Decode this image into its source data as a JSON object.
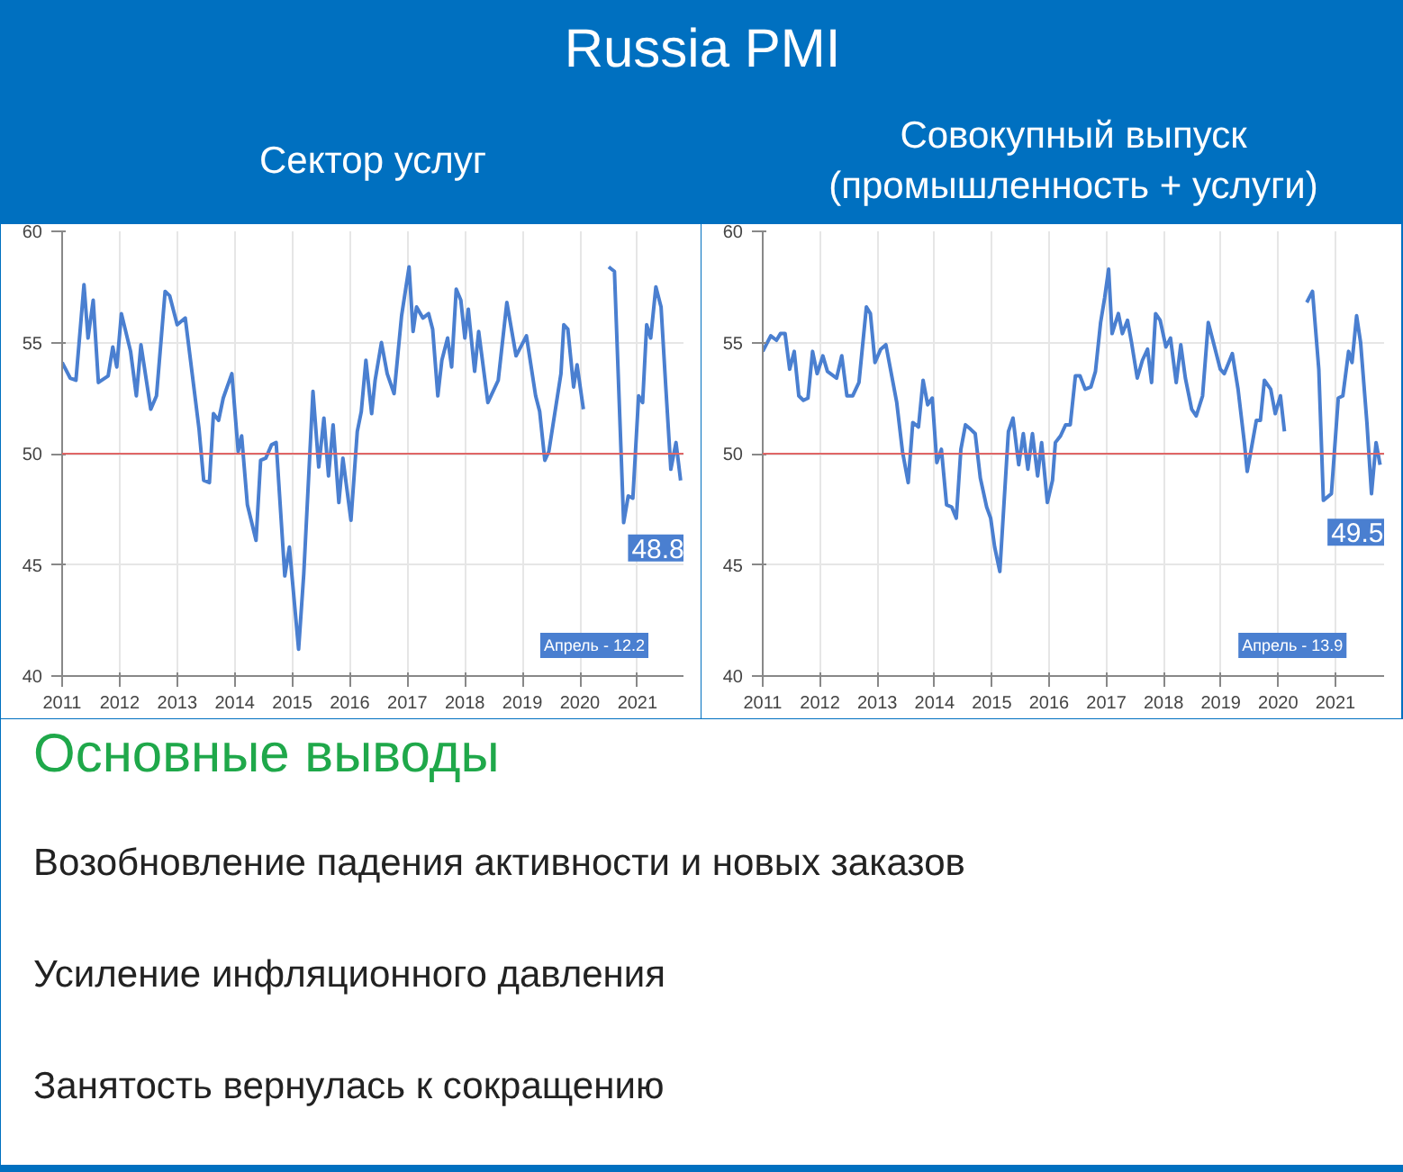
{
  "chart_data": [
    {
      "type": "other",
      "title": "Russia PMI"
    },
    {
      "type": "line",
      "title": "Сектор услуг",
      "xlim": [
        2011,
        2021.8
      ],
      "ylim": [
        40,
        60
      ],
      "xticks": [
        2011,
        2012,
        2013,
        2014,
        2015,
        2016,
        2017,
        2018,
        2019,
        2020,
        2021
      ],
      "yticks": [
        40,
        45,
        50,
        55,
        60
      ],
      "grid": true,
      "marker": "none",
      "line_style": "solid",
      "series": [
        {
          "color": "#4a7fd0",
          "x": [
            2011.0,
            2011.14,
            2011.24,
            2011.38,
            2011.45,
            2011.54,
            2011.63,
            2011.8,
            2011.88,
            2011.95,
            2012.03,
            2012.19,
            2012.29,
            2012.37,
            2012.54,
            2012.64,
            2012.79,
            2012.87,
            2013.0,
            2013.14,
            2013.38,
            2013.46,
            2013.56,
            2013.63,
            2013.72,
            2013.8,
            2013.95,
            2014.06,
            2014.12,
            2014.22,
            2014.37,
            2014.45,
            2014.54,
            2014.64,
            2014.72,
            2014.87,
            2014.95,
            2015.11,
            2015.2,
            2015.36,
            2015.46,
            2015.55,
            2015.63,
            2015.71,
            2015.81,
            2015.88,
            2015.96,
            2016.02,
            2016.13,
            2016.2,
            2016.28,
            2016.38,
            2016.44,
            2016.55,
            2016.65,
            2016.77,
            2016.9,
            2017.03,
            2017.1,
            2017.16,
            2017.27,
            2017.37,
            2017.44,
            2017.53,
            2017.6,
            2017.7,
            2017.77,
            2017.85,
            2017.93,
            2018.0,
            2018.06,
            2018.17,
            2018.24,
            2018.4,
            2018.58,
            2018.73,
            2018.89,
            2019.07,
            2019.23,
            2019.3,
            2019.39,
            2019.46,
            2019.67,
            2019.72,
            2019.79,
            2019.89,
            2019.95,
            2020.06,
            2020.25,
            2020.5,
            2020.6,
            2020.76,
            2020.84,
            2020.92,
            2021.02,
            2021.09,
            2021.16,
            2021.23,
            2021.32,
            2021.41,
            2021.49,
            2021.58,
            2021.67,
            2021.75
          ],
          "values": [
            54.1,
            53.4,
            53.3,
            57.6,
            55.2,
            56.9,
            53.2,
            53.5,
            54.8,
            53.9,
            56.3,
            54.6,
            52.6,
            54.9,
            52.0,
            52.6,
            57.3,
            57.1,
            55.8,
            56.1,
            51.1,
            48.8,
            48.7,
            51.8,
            51.5,
            52.5,
            53.6,
            50.1,
            50.8,
            47.7,
            46.1,
            49.7,
            49.8,
            50.4,
            50.5,
            44.5,
            45.8,
            41.2,
            44.6,
            52.8,
            49.4,
            51.6,
            49.0,
            51.3,
            47.8,
            49.8,
            48.2,
            47.0,
            51.0,
            51.9,
            54.2,
            51.8,
            53.3,
            55.0,
            53.6,
            52.7,
            56.2,
            58.4,
            55.5,
            56.6,
            56.1,
            56.3,
            55.6,
            52.6,
            54.2,
            55.2,
            53.9,
            57.4,
            56.9,
            55.2,
            56.5,
            53.7,
            55.5,
            52.3,
            53.3,
            56.8,
            54.4,
            55.3,
            52.6,
            51.9,
            49.7,
            50.1,
            53.6,
            55.8,
            55.6,
            53.0,
            54.0,
            52.0,
            null,
            58.4,
            58.2,
            46.9,
            48.1,
            48.0,
            52.6,
            52.3,
            55.8,
            55.2,
            57.5,
            56.6,
            53.1,
            49.3,
            50.5,
            48.8
          ]
        }
      ],
      "ref_lines": [
        {
          "axis": "y",
          "value": 50,
          "color": "#e06666"
        }
      ],
      "annotations": [
        {
          "text": "48.8",
          "x": 2021.75,
          "y": 48.8
        },
        "Апрель - 12.2"
      ]
    },
    {
      "type": "line",
      "title": "Совокупный выпуск\n(промышленность + услуги)",
      "xlim": [
        2011,
        2021.85
      ],
      "ylim": [
        40,
        60
      ],
      "xticks": [
        2011,
        2012,
        2013,
        2014,
        2015,
        2016,
        2017,
        2018,
        2019,
        2020,
        2021
      ],
      "yticks": [
        40,
        45,
        50,
        55,
        60
      ],
      "grid": true,
      "marker": "none",
      "line_style": "solid",
      "series": [
        {
          "color": "#4a7fd0",
          "x": [
            2011.0,
            2011.14,
            2011.24,
            2011.31,
            2011.39,
            2011.47,
            2011.55,
            2011.63,
            2011.71,
            2011.79,
            2011.87,
            2011.95,
            2012.05,
            2012.13,
            2012.29,
            2012.38,
            2012.47,
            2012.57,
            2012.68,
            2012.81,
            2012.88,
            2012.96,
            2013.06,
            2013.15,
            2013.34,
            2013.44,
            2013.54,
            2013.62,
            2013.72,
            2013.8,
            2013.88,
            2013.96,
            2014.04,
            2014.12,
            2014.21,
            2014.3,
            2014.38,
            2014.46,
            2014.54,
            2014.63,
            2014.71,
            2014.8,
            2014.91,
            2014.98,
            2015.05,
            2015.14,
            2015.29,
            2015.37,
            2015.47,
            2015.55,
            2015.63,
            2015.71,
            2015.8,
            2015.87,
            2015.97,
            2016.06,
            2016.11,
            2016.2,
            2016.29,
            2016.37,
            2016.46,
            2016.54,
            2016.63,
            2016.73,
            2016.81,
            2016.9,
            2016.97,
            2017.04,
            2017.1,
            2017.21,
            2017.28,
            2017.37,
            2017.44,
            2017.54,
            2017.63,
            2017.72,
            2017.79,
            2017.86,
            2017.94,
            2018.04,
            2018.12,
            2018.22,
            2018.3,
            2018.38,
            2018.49,
            2018.57,
            2018.68,
            2018.78,
            2018.88,
            2018.99,
            2019.06,
            2019.2,
            2019.3,
            2019.41,
            2019.46,
            2019.53,
            2019.62,
            2019.69,
            2019.76,
            2019.87,
            2019.95,
            2020.04,
            2020.11,
            2020.25,
            2020.5,
            2020.6,
            2020.71,
            2020.79,
            2020.93,
            2021.05,
            2021.13,
            2021.23,
            2021.29,
            2021.37,
            2021.44,
            2021.55,
            2021.63,
            2021.71,
            2021.78
          ],
          "values": [
            54.6,
            55.3,
            55.1,
            55.4,
            55.4,
            53.8,
            54.6,
            52.6,
            52.4,
            52.5,
            54.6,
            53.6,
            54.4,
            53.7,
            53.4,
            54.4,
            52.6,
            52.6,
            53.2,
            56.6,
            56.3,
            54.1,
            54.7,
            54.9,
            52.3,
            50.1,
            48.7,
            51.4,
            51.2,
            53.3,
            52.2,
            52.5,
            49.6,
            50.2,
            47.7,
            47.6,
            47.1,
            50.2,
            51.3,
            51.1,
            50.9,
            48.9,
            47.6,
            47.1,
            45.8,
            44.7,
            51.0,
            51.6,
            49.5,
            50.9,
            49.3,
            50.9,
            49.0,
            50.5,
            47.8,
            48.8,
            50.5,
            50.8,
            51.3,
            51.3,
            53.5,
            53.5,
            52.9,
            53.0,
            53.7,
            55.9,
            57.0,
            58.3,
            55.4,
            56.3,
            55.4,
            56.0,
            55.0,
            53.4,
            54.2,
            54.7,
            53.2,
            56.3,
            56.0,
            54.8,
            55.2,
            53.2,
            54.9,
            53.4,
            52.0,
            51.7,
            52.6,
            55.9,
            54.9,
            53.8,
            53.6,
            54.5,
            52.9,
            50.5,
            49.2,
            50.2,
            51.5,
            51.5,
            53.3,
            52.9,
            51.8,
            52.6,
            51.0,
            null,
            56.8,
            57.3,
            53.8,
            47.9,
            48.2,
            52.5,
            52.6,
            54.6,
            54.1,
            56.2,
            55.0,
            51.4,
            48.2,
            50.5,
            49.5
          ]
        }
      ],
      "ref_lines": [
        {
          "axis": "y",
          "value": 50,
          "color": "#e06666"
        }
      ],
      "annotations": [
        {
          "text": "49.5",
          "x": 2021.78,
          "y": 49.5
        },
        "Апрель - 13.9"
      ]
    },
    {
      "type": "other",
      "title": "Основные выводы",
      "annotations": [
        "Возобновление падения активности и новых заказов",
        "Усиление инфляционного давления",
        "Занятость вернулась к сокращению"
      ]
    }
  ]
}
